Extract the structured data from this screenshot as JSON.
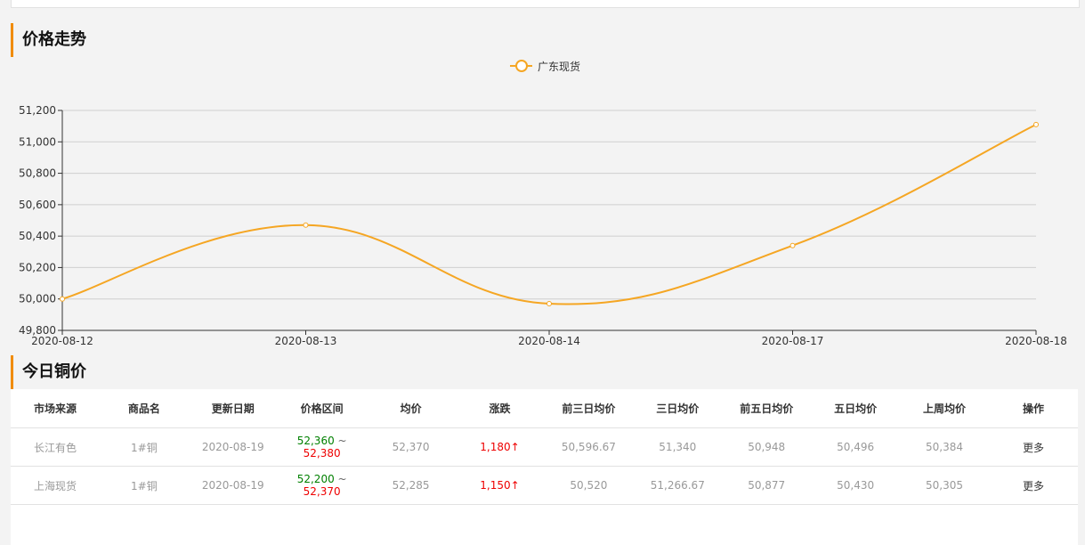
{
  "section_trend_title": "价格走势",
  "section_today_title": "今日铜价",
  "chart_data": {
    "type": "line",
    "title": "",
    "xlabel": "",
    "ylabel": "",
    "categories": [
      "2020-08-12",
      "2020-08-13",
      "2020-08-14",
      "2020-08-17",
      "2020-08-18"
    ],
    "series": [
      {
        "name": "广东现货",
        "values": [
          50000,
          50470,
          49970,
          50340,
          51110
        ],
        "color": "#f5a623"
      }
    ],
    "ylim": [
      49800,
      51200
    ],
    "yticks": [
      49800,
      50000,
      50200,
      50400,
      50600,
      50800,
      51000,
      51200
    ],
    "ytick_labels": [
      "49,800",
      "50,000",
      "50,200",
      "50,400",
      "50,600",
      "50,800",
      "51,000",
      "51,200"
    ],
    "grid": true,
    "legend": "top-center"
  },
  "table": {
    "headers": [
      "市场来源",
      "商品名",
      "更新日期",
      "价格区间",
      "均价",
      "涨跌",
      "前三日均价",
      "三日均价",
      "前五日均价",
      "五日均价",
      "上周均价",
      "操作"
    ],
    "rows": [
      {
        "market": "长江有色",
        "product": "1#铜",
        "date": "2020-08-19",
        "low": "52,360",
        "tilde": "~",
        "high": "52,380",
        "avg": "52,370",
        "change": "1,180",
        "change_arrow": "↑",
        "prev3": "50,596.67",
        "avg3": "51,340",
        "prev5": "50,948",
        "avg5": "50,496",
        "last_week": "50,384",
        "action": "更多"
      },
      {
        "market": "上海现货",
        "product": "1#铜",
        "date": "2020-08-19",
        "low": "52,200",
        "tilde": "~",
        "high": "52,370",
        "avg": "52,285",
        "change": "1,150",
        "change_arrow": "↑",
        "prev3": "50,520",
        "avg3": "51,266.67",
        "prev5": "50,877",
        "avg5": "50,430",
        "last_week": "50,305",
        "action": "更多"
      }
    ]
  }
}
